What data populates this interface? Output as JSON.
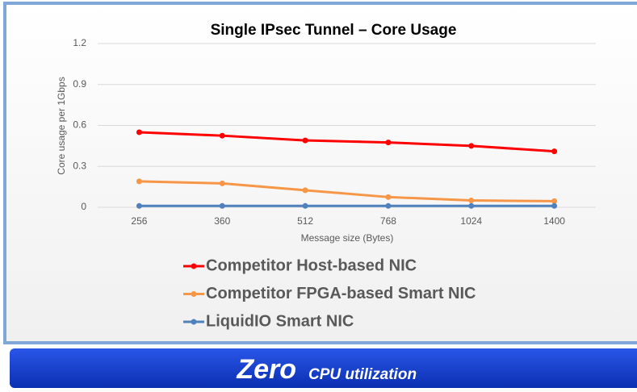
{
  "chart_data": {
    "type": "line",
    "title": "Single IPsec Tunnel – Core Usage",
    "x_label": "Message size (Bytes)",
    "y_label": "Core usage per 1Gbps",
    "categories": [
      "256",
      "360",
      "512",
      "768",
      "1024",
      "1400"
    ],
    "series": [
      {
        "name": "Competitor Host-based NIC",
        "color": "#ff0000",
        "values": [
          0.55,
          0.525,
          0.49,
          0.475,
          0.45,
          0.41
        ]
      },
      {
        "name": "Competitor FPGA-based Smart NIC",
        "color": "#f79646",
        "values": [
          0.19,
          0.175,
          0.125,
          0.075,
          0.05,
          0.045
        ]
      },
      {
        "name": "LiquidIO Smart NIC",
        "color": "#4f81bd",
        "values": [
          0.01,
          0.01,
          0.01,
          0.01,
          0.01,
          0.01
        ]
      }
    ],
    "ylim": [
      0,
      1.2
    ],
    "yticks": [
      0,
      0.3,
      0.6,
      0.9,
      1.2
    ],
    "grid": true,
    "legend": "bottom"
  },
  "banner": {
    "emphasis": "Zero",
    "text": "CPU utilization"
  }
}
